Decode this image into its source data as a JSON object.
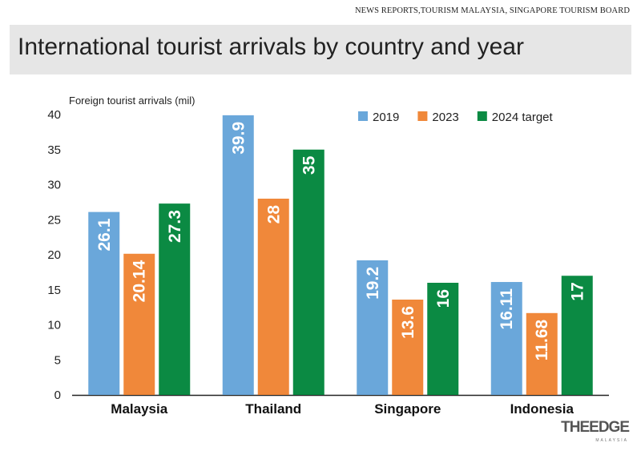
{
  "source": "NEWS REPORTS,TOURISM MALAYSIA,  SINGAPORE TOURISM BOARD",
  "branding": {
    "name": "THEEDGE",
    "sub": "MALAYSIA"
  },
  "colors": {
    "2019": "#6aa7da",
    "2023": "#f0883a",
    "2024 target": "#0b8a43"
  },
  "chart_data": {
    "type": "bar",
    "title": "International tourist arrivals by country and year",
    "ylabel": "Foreign tourist arrivals (mil)",
    "xlabel": "",
    "ylim": [
      0,
      40
    ],
    "yticks": [
      0,
      5,
      10,
      15,
      20,
      25,
      30,
      35,
      40
    ],
    "grid": false,
    "legend_position": "top-right",
    "categories": [
      "Malaysia",
      "Thailand",
      "Singapore",
      "Indonesia"
    ],
    "series": [
      {
        "name": "2019",
        "values": [
          26.1,
          39.9,
          19.2,
          16.11
        ],
        "labels": [
          "26.1",
          "39.9",
          "19.2",
          "16.11"
        ]
      },
      {
        "name": "2023",
        "values": [
          20.14,
          28,
          13.6,
          11.68
        ],
        "labels": [
          "20.14",
          "28",
          "13.6",
          "11.68"
        ]
      },
      {
        "name": "2024 target",
        "values": [
          27.3,
          35,
          16,
          17
        ],
        "labels": [
          "27.3",
          "35",
          "16",
          "17"
        ]
      }
    ]
  }
}
